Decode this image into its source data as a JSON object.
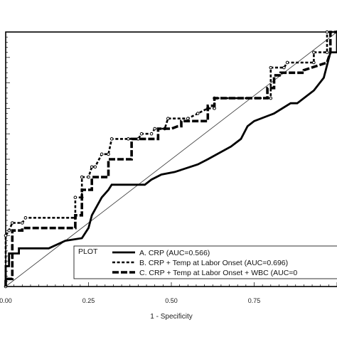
{
  "chart_data": {
    "type": "line",
    "title": "",
    "xlabel": "1 - Specificity",
    "ylabel": "",
    "xlim": [
      0,
      1
    ],
    "ylim": [
      0,
      1
    ],
    "x_ticks": [
      "0.00",
      "0.25",
      "0.50",
      "0.75"
    ],
    "legend_title": "PLOT",
    "legend_position": "bottom-right",
    "grid": false,
    "reference_line": true,
    "series": [
      {
        "name": "A. CRP (AUC=0.566)",
        "style": "solid",
        "points": [
          [
            0,
            0
          ],
          [
            0,
            0.08
          ],
          [
            0.01,
            0.08
          ],
          [
            0.01,
            0.13
          ],
          [
            0.04,
            0.13
          ],
          [
            0.04,
            0.15
          ],
          [
            0.13,
            0.15
          ],
          [
            0.18,
            0.18
          ],
          [
            0.23,
            0.19
          ],
          [
            0.25,
            0.23
          ],
          [
            0.26,
            0.28
          ],
          [
            0.29,
            0.35
          ],
          [
            0.31,
            0.38
          ],
          [
            0.32,
            0.4
          ],
          [
            0.42,
            0.4
          ],
          [
            0.44,
            0.42
          ],
          [
            0.47,
            0.44
          ],
          [
            0.51,
            0.45
          ],
          [
            0.58,
            0.48
          ],
          [
            0.61,
            0.5
          ],
          [
            0.68,
            0.55
          ],
          [
            0.71,
            0.58
          ],
          [
            0.73,
            0.63
          ],
          [
            0.75,
            0.65
          ],
          [
            0.81,
            0.68
          ],
          [
            0.86,
            0.72
          ],
          [
            0.88,
            0.72
          ],
          [
            0.93,
            0.77
          ],
          [
            0.96,
            0.82
          ],
          [
            0.98,
            0.92
          ],
          [
            1.0,
            0.92
          ],
          [
            1.0,
            1.0
          ]
        ]
      },
      {
        "name": "B. CRP + Temp at Labor Onset (AUC=0.696)",
        "style": "dotted",
        "points": [
          [
            0,
            0
          ],
          [
            0,
            0.2
          ],
          [
            0.01,
            0.22
          ],
          [
            0.02,
            0.25
          ],
          [
            0.05,
            0.25
          ],
          [
            0.06,
            0.27
          ],
          [
            0.21,
            0.27
          ],
          [
            0.21,
            0.35
          ],
          [
            0.23,
            0.35
          ],
          [
            0.23,
            0.43
          ],
          [
            0.25,
            0.43
          ],
          [
            0.26,
            0.47
          ],
          [
            0.27,
            0.47
          ],
          [
            0.29,
            0.52
          ],
          [
            0.31,
            0.52
          ],
          [
            0.32,
            0.58
          ],
          [
            0.37,
            0.58
          ],
          [
            0.4,
            0.58
          ],
          [
            0.41,
            0.6
          ],
          [
            0.44,
            0.6
          ],
          [
            0.45,
            0.62
          ],
          [
            0.48,
            0.62
          ],
          [
            0.49,
            0.66
          ],
          [
            0.55,
            0.66
          ],
          [
            0.58,
            0.68
          ],
          [
            0.61,
            0.7
          ],
          [
            0.63,
            0.7
          ],
          [
            0.63,
            0.74
          ],
          [
            0.8,
            0.74
          ],
          [
            0.8,
            0.86
          ],
          [
            0.84,
            0.86
          ],
          [
            0.85,
            0.88
          ],
          [
            0.93,
            0.88
          ],
          [
            0.93,
            0.92
          ],
          [
            0.97,
            0.92
          ],
          [
            0.97,
            1.0
          ],
          [
            1.0,
            1.0
          ]
        ]
      },
      {
        "name": "C. CRP + Temp at Labor Onset + WBC (AUC=0",
        "style": "dashed",
        "points": [
          [
            0,
            0
          ],
          [
            0,
            0.03
          ],
          [
            0.02,
            0.03
          ],
          [
            0.02,
            0.22
          ],
          [
            0.05,
            0.22
          ],
          [
            0.05,
            0.23
          ],
          [
            0.21,
            0.23
          ],
          [
            0.21,
            0.28
          ],
          [
            0.23,
            0.28
          ],
          [
            0.23,
            0.38
          ],
          [
            0.26,
            0.38
          ],
          [
            0.26,
            0.43
          ],
          [
            0.31,
            0.43
          ],
          [
            0.31,
            0.5
          ],
          [
            0.38,
            0.5
          ],
          [
            0.38,
            0.58
          ],
          [
            0.46,
            0.58
          ],
          [
            0.46,
            0.62
          ],
          [
            0.5,
            0.62
          ],
          [
            0.52,
            0.63
          ],
          [
            0.53,
            0.63
          ],
          [
            0.53,
            0.65
          ],
          [
            0.61,
            0.65
          ],
          [
            0.61,
            0.71
          ],
          [
            0.63,
            0.71
          ],
          [
            0.63,
            0.74
          ],
          [
            0.79,
            0.74
          ],
          [
            0.79,
            0.78
          ],
          [
            0.81,
            0.78
          ],
          [
            0.81,
            0.83
          ],
          [
            0.83,
            0.83
          ],
          [
            0.83,
            0.84
          ],
          [
            0.9,
            0.84
          ],
          [
            0.9,
            0.85
          ],
          [
            0.97,
            0.88
          ],
          [
            0.98,
            0.92
          ],
          [
            0.98,
            1.0
          ],
          [
            1.0,
            1.0
          ]
        ]
      }
    ]
  }
}
